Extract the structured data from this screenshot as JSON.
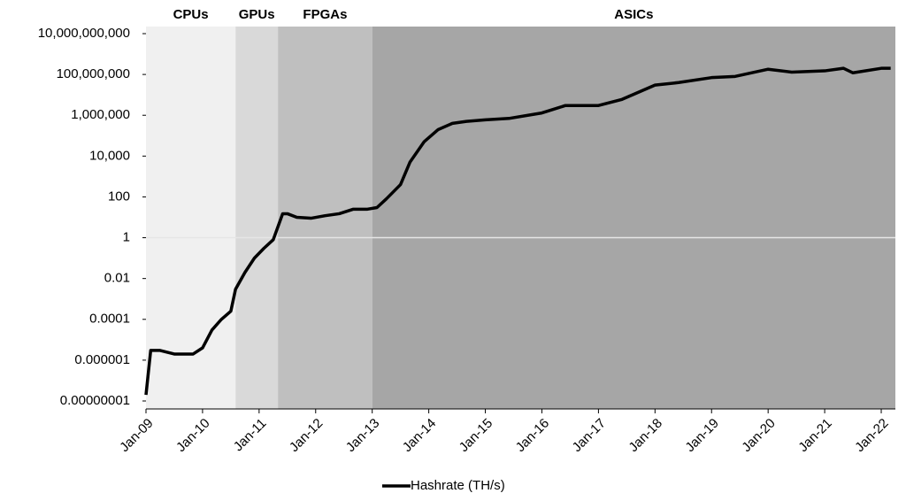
{
  "chart_data": {
    "type": "line",
    "log_scale": true,
    "x_axis_at": 1,
    "ylim": [
      1e-08,
      10000000000
    ],
    "yticks": [
      {
        "value": 1e-08,
        "label": "0.00000001"
      },
      {
        "value": 1e-06,
        "label": "0.000001"
      },
      0.0001,
      0.01,
      1,
      100,
      {
        "value": 10000,
        "label": "10,000"
      },
      {
        "value": 1000000,
        "label": "1,000,000"
      },
      {
        "value": 100000000,
        "label": "100,000,000"
      },
      {
        "value": 10000000000,
        "label": "10,000,000,000"
      }
    ],
    "xlim": [
      "2009-01",
      "2022-04"
    ],
    "xticks": [
      {
        "value": "2009-01",
        "label": "Jan-09"
      },
      {
        "value": "2010-01",
        "label": "Jan-10"
      },
      {
        "value": "2011-01",
        "label": "Jan-11"
      },
      {
        "value": "2012-01",
        "label": "Jan-12"
      },
      {
        "value": "2013-01",
        "label": "Jan-13"
      },
      {
        "value": "2014-01",
        "label": "Jan-14"
      },
      {
        "value": "2015-01",
        "label": "Jan-15"
      },
      {
        "value": "2016-01",
        "label": "Jan-16"
      },
      {
        "value": "2017-01",
        "label": "Jan-17"
      },
      {
        "value": "2018-01",
        "label": "Jan-18"
      },
      {
        "value": "2019-01",
        "label": "Jan-19"
      },
      {
        "value": "2020-01",
        "label": "Jan-20"
      },
      {
        "value": "2021-01",
        "label": "Jan-21"
      },
      {
        "value": "2022-01",
        "label": "Jan-22"
      }
    ],
    "regions": [
      {
        "label": "CPUs",
        "start": "2009-01",
        "end": "2010-08",
        "color": "#f0f0f0"
      },
      {
        "label": "GPUs",
        "start": "2010-08",
        "end": "2011-05",
        "color": "#d9d9d9"
      },
      {
        "label": "FPGAs",
        "start": "2011-05",
        "end": "2013-01",
        "color": "#bfbfbf"
      },
      {
        "label": "ASICs",
        "start": "2013-01",
        "end": "2022-04",
        "color": "#a6a6a6"
      }
    ],
    "legend": "bottom",
    "x": [
      "2009-01",
      "2009-02",
      "2009-04",
      "2009-07",
      "2009-09",
      "2009-11",
      "2010-01",
      "2010-03",
      "2010-05",
      "2010-07",
      "2010-08",
      "2010-10",
      "2010-12",
      "2011-02",
      "2011-04",
      "2011-06",
      "2011-07",
      "2011-09",
      "2011-12",
      "2012-03",
      "2012-06",
      "2012-09",
      "2012-12",
      "2013-02",
      "2013-04",
      "2013-07",
      "2013-09",
      "2013-12",
      "2014-03",
      "2014-06",
      "2014-09",
      "2015-01",
      "2015-06",
      "2016-01",
      "2016-06",
      "2017-01",
      "2017-06",
      "2018-01",
      "2018-06",
      "2019-01",
      "2019-06",
      "2020-01",
      "2020-06",
      "2021-01",
      "2021-05",
      "2021-07",
      "2022-01",
      "2022-03"
    ],
    "series": [
      {
        "name": "Hashrate (TH/s)",
        "color": "#000000",
        "values": [
          2e-08,
          3e-06,
          3e-06,
          2e-06,
          2e-06,
          2e-06,
          4e-06,
          3e-05,
          0.0001,
          0.00025,
          0.003,
          0.02,
          0.1,
          0.3,
          0.8,
          15,
          15,
          10,
          9,
          12,
          15,
          25,
          25,
          30,
          80,
          400,
          5000,
          50000,
          200000,
          400000,
          500000,
          600000,
          700000,
          1300000,
          3000000,
          3000000,
          6000000,
          30000000,
          40000000,
          70000000,
          80000000,
          180000000,
          130000000,
          150000000,
          200000000,
          120000000,
          200000000,
          200000000
        ]
      }
    ]
  }
}
